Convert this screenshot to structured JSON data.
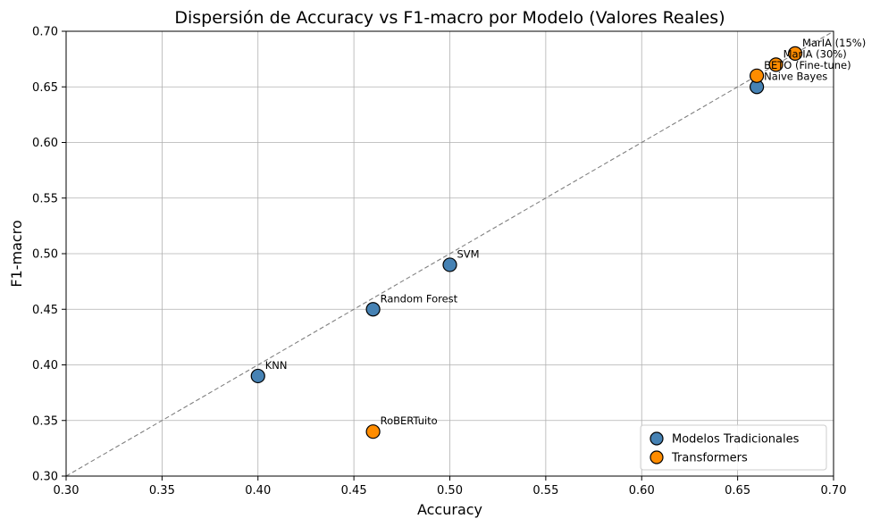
{
  "chart_data": {
    "type": "scatter",
    "title": "Dispersión de Accuracy vs F1-macro por Modelo (Valores Reales)",
    "xlabel": "Accuracy",
    "ylabel": "F1-macro",
    "xlim": [
      0.3,
      0.7
    ],
    "ylim": [
      0.3,
      0.7
    ],
    "xticks": [
      "0.30",
      "0.35",
      "0.40",
      "0.45",
      "0.50",
      "0.55",
      "0.60",
      "0.65",
      "0.70"
    ],
    "yticks": [
      "0.30",
      "0.35",
      "0.40",
      "0.45",
      "0.50",
      "0.55",
      "0.60",
      "0.65",
      "0.70"
    ],
    "grid": true,
    "legend_position": "bottom-right",
    "reference_line": "y = x (dashed)",
    "series": [
      {
        "name": "Modelos Tradicionales",
        "color": "#4682b4",
        "points": [
          {
            "label": "Naive Bayes",
            "x": 0.66,
            "y": 0.65
          },
          {
            "label": "SVM",
            "x": 0.5,
            "y": 0.49
          },
          {
            "label": "Random Forest",
            "x": 0.46,
            "y": 0.45
          },
          {
            "label": "KNN",
            "x": 0.4,
            "y": 0.39
          }
        ]
      },
      {
        "name": "Transformers",
        "color": "#ff8c00",
        "points": [
          {
            "label": "MarIA (15%)",
            "x": 0.68,
            "y": 0.68
          },
          {
            "label": "MarIA (30%)",
            "x": 0.67,
            "y": 0.67
          },
          {
            "label": "BETO (Fine-tune)",
            "x": 0.66,
            "y": 0.66
          },
          {
            "label": "RoBERTuito",
            "x": 0.46,
            "y": 0.34
          }
        ]
      }
    ]
  }
}
